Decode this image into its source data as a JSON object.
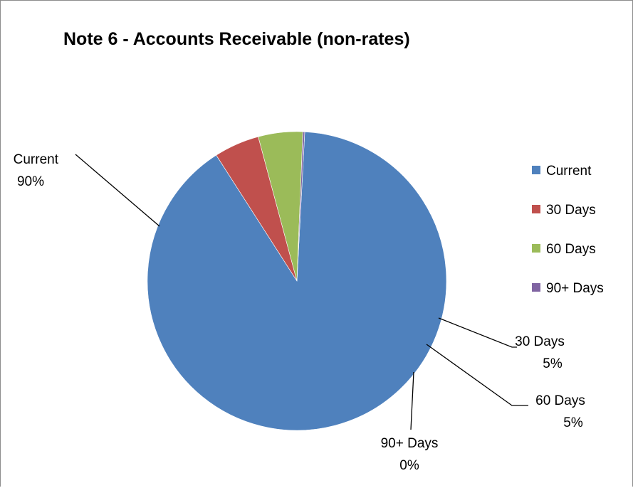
{
  "chart_data": {
    "type": "pie",
    "title": "Note 6 - Accounts Receivable (non-rates)",
    "categories": [
      "Current",
      "30 Days",
      "60 Days",
      "90+ Days"
    ],
    "values": [
      90.1,
      4.9,
      4.8,
      0.2
    ],
    "percent_labels": [
      "90%",
      "5%",
      "5%",
      "0%"
    ],
    "colors": [
      "#4F81BD",
      "#C0504D",
      "#9BBB59",
      "#8064A2"
    ],
    "legend": {
      "position": "right",
      "entries": [
        "Current",
        "30 Days",
        "60 Days",
        "90+ Days"
      ]
    },
    "data_labels": "category name and percentage, outside end with leader lines",
    "start_angle_degrees": 87
  }
}
